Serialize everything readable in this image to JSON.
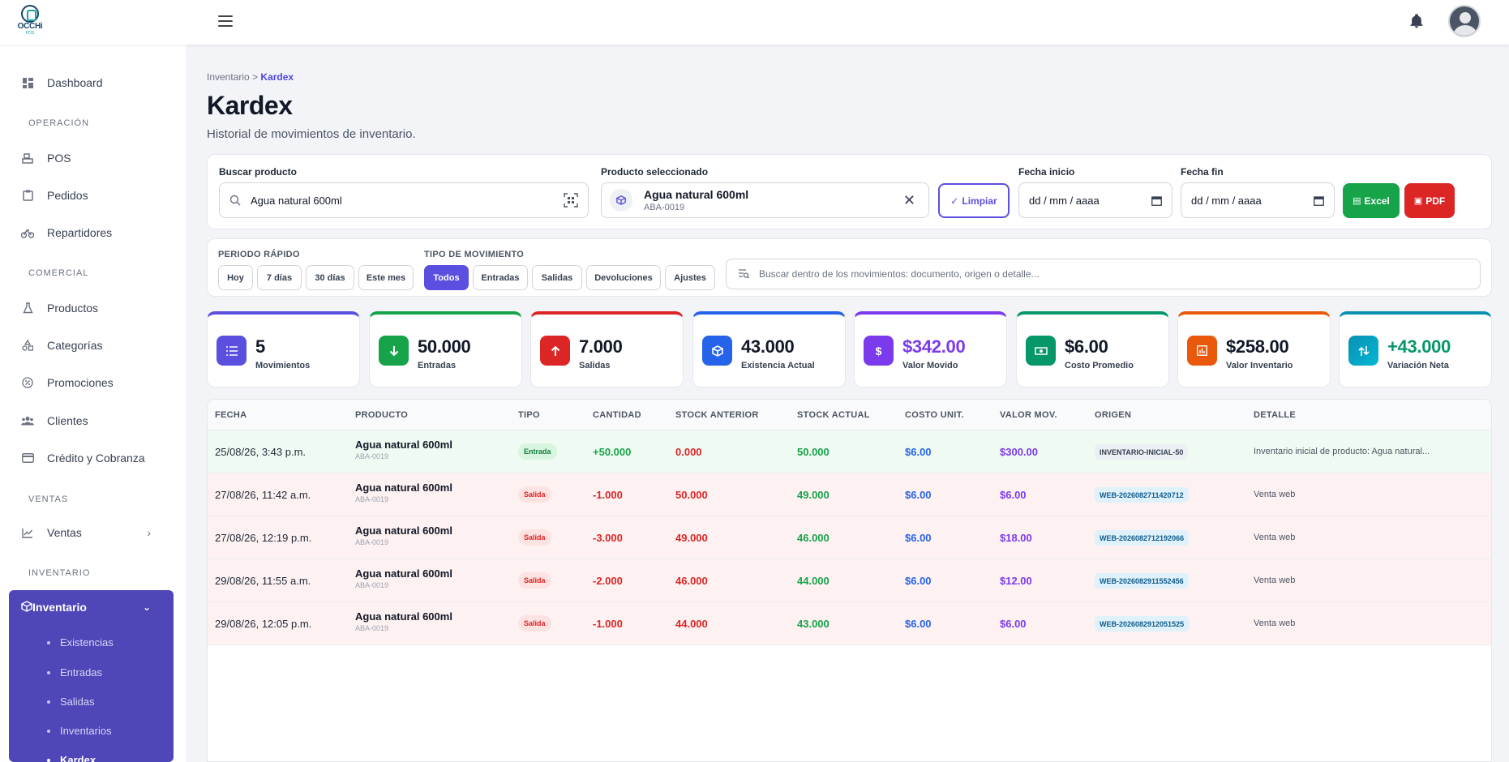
{
  "brand": {
    "name": "OCCHi",
    "sub": "POS"
  },
  "colors": {
    "accent": "#5b4fe0",
    "sidebar_active": "#4f46b8",
    "excel": "#16a34a",
    "pdf": "#dc2626"
  },
  "sidebar": {
    "dashboard": "Dashboard",
    "sec_operacion": "OPERACIÓN",
    "pos": "POS",
    "pedidos": "Pedidos",
    "repartidores": "Repartidores",
    "sec_comercial": "COMERCIAL",
    "productos": "Productos",
    "categorias": "Categorías",
    "promociones": "Promociones",
    "clientes": "Clientes",
    "credito": "Crédito y Cobranza",
    "sec_ventas": "VENTAS",
    "ventas": "Ventas",
    "sec_inventario": "INVENTARIO",
    "inventario": "Inventario",
    "sub": [
      "Existencias",
      "Entradas",
      "Salidas",
      "Inventarios",
      "Kardex"
    ]
  },
  "breadcrumb": {
    "parent": "Inventario",
    "sep": ">",
    "current": "Kardex"
  },
  "page": {
    "title": "Kardex",
    "subtitle": "Historial de movimientos de inventario."
  },
  "filters": {
    "search_label": "Buscar producto",
    "search_value": "Agua natural 600ml",
    "selected_label": "Producto seleccionado",
    "selected_name": "Agua natural 600ml",
    "selected_sku": "ABA-0019",
    "clear": "Limpiar",
    "start_label": "Fecha inicio",
    "start_value": "dd / mm / aaaa",
    "end_label": "Fecha fin",
    "end_value": "dd / mm / aaaa",
    "excel": "Excel",
    "pdf": "PDF"
  },
  "quick": {
    "period_label": "PERIODO RÁPIDO",
    "periods": [
      "Hoy",
      "7 días",
      "30 días",
      "Este mes"
    ],
    "type_label": "TIPO DE MOVIMIENTO",
    "types": [
      "Todos",
      "Entradas",
      "Salidas",
      "Devoluciones",
      "Ajustes"
    ],
    "active_type": "Todos",
    "search_placeholder": "Buscar dentro de los movimientos: documento, origen o detalle..."
  },
  "kpis": [
    {
      "value": "5",
      "label": "Movimientos",
      "color": "#5b4fe0",
      "icon": "list-icon"
    },
    {
      "value": "50.000",
      "label": "Entradas",
      "color": "#16a34a",
      "icon": "arrow-down-icon"
    },
    {
      "value": "7.000",
      "label": "Salidas",
      "color": "#dc2626",
      "icon": "arrow-up-icon"
    },
    {
      "value": "43.000",
      "label": "Existencia Actual",
      "color": "#2563eb",
      "icon": "box-icon"
    },
    {
      "value": "$342.00",
      "label": "Valor Movido",
      "color": "#7c3aed",
      "icon": "dollar-icon"
    },
    {
      "value": "$6.00",
      "label": "Costo Promedio",
      "color": "#059669",
      "icon": "cash-icon"
    },
    {
      "value": "$258.00",
      "label": "Valor Inventario",
      "color": "#ea580c",
      "icon": "chart-icon"
    },
    {
      "value": "+43.000",
      "label": "Variación Neta",
      "color": "#0891b2",
      "icon": "swap-icon"
    }
  ],
  "table": {
    "headers": [
      "FECHA",
      "PRODUCTO",
      "TIPO",
      "CANTIDAD",
      "STOCK ANTERIOR",
      "STOCK ACTUAL",
      "COSTO UNIT.",
      "VALOR MOV.",
      "ORIGEN",
      "DETALLE"
    ],
    "rows": [
      {
        "fecha": "25/08/26, 3:43 p.m.",
        "producto": "Agua natural 600ml",
        "sku": "ABA-0019",
        "tipo": "Entrada",
        "cantidad": "+50.000",
        "anterior": "0.000",
        "actual": "50.000",
        "costo": "$6.00",
        "valor": "$300.00",
        "origen": "INVENTARIO-INICIAL-50",
        "detalle": "Inventario inicial de producto: Agua natural..."
      },
      {
        "fecha": "27/08/26, 11:42 a.m.",
        "producto": "Agua natural 600ml",
        "sku": "ABA-0019",
        "tipo": "Salida",
        "cantidad": "-1.000",
        "anterior": "50.000",
        "actual": "49.000",
        "costo": "$6.00",
        "valor": "$6.00",
        "origen": "WEB-2026082711420712",
        "detalle": "Venta web"
      },
      {
        "fecha": "27/08/26, 12:19 p.m.",
        "producto": "Agua natural 600ml",
        "sku": "ABA-0019",
        "tipo": "Salida",
        "cantidad": "-3.000",
        "anterior": "49.000",
        "actual": "46.000",
        "costo": "$6.00",
        "valor": "$18.00",
        "origen": "WEB-2026082712192066",
        "detalle": "Venta web"
      },
      {
        "fecha": "29/08/26, 11:55 a.m.",
        "producto": "Agua natural 600ml",
        "sku": "ABA-0019",
        "tipo": "Salida",
        "cantidad": "-2.000",
        "anterior": "46.000",
        "actual": "44.000",
        "costo": "$6.00",
        "valor": "$12.00",
        "origen": "WEB-2026082911552456",
        "detalle": "Venta web"
      },
      {
        "fecha": "29/08/26, 12:05 p.m.",
        "producto": "Agua natural 600ml",
        "sku": "ABA-0019",
        "tipo": "Salida",
        "cantidad": "-1.000",
        "anterior": "44.000",
        "actual": "43.000",
        "costo": "$6.00",
        "valor": "$6.00",
        "origen": "WEB-2026082912051525",
        "detalle": "Venta web"
      }
    ]
  }
}
